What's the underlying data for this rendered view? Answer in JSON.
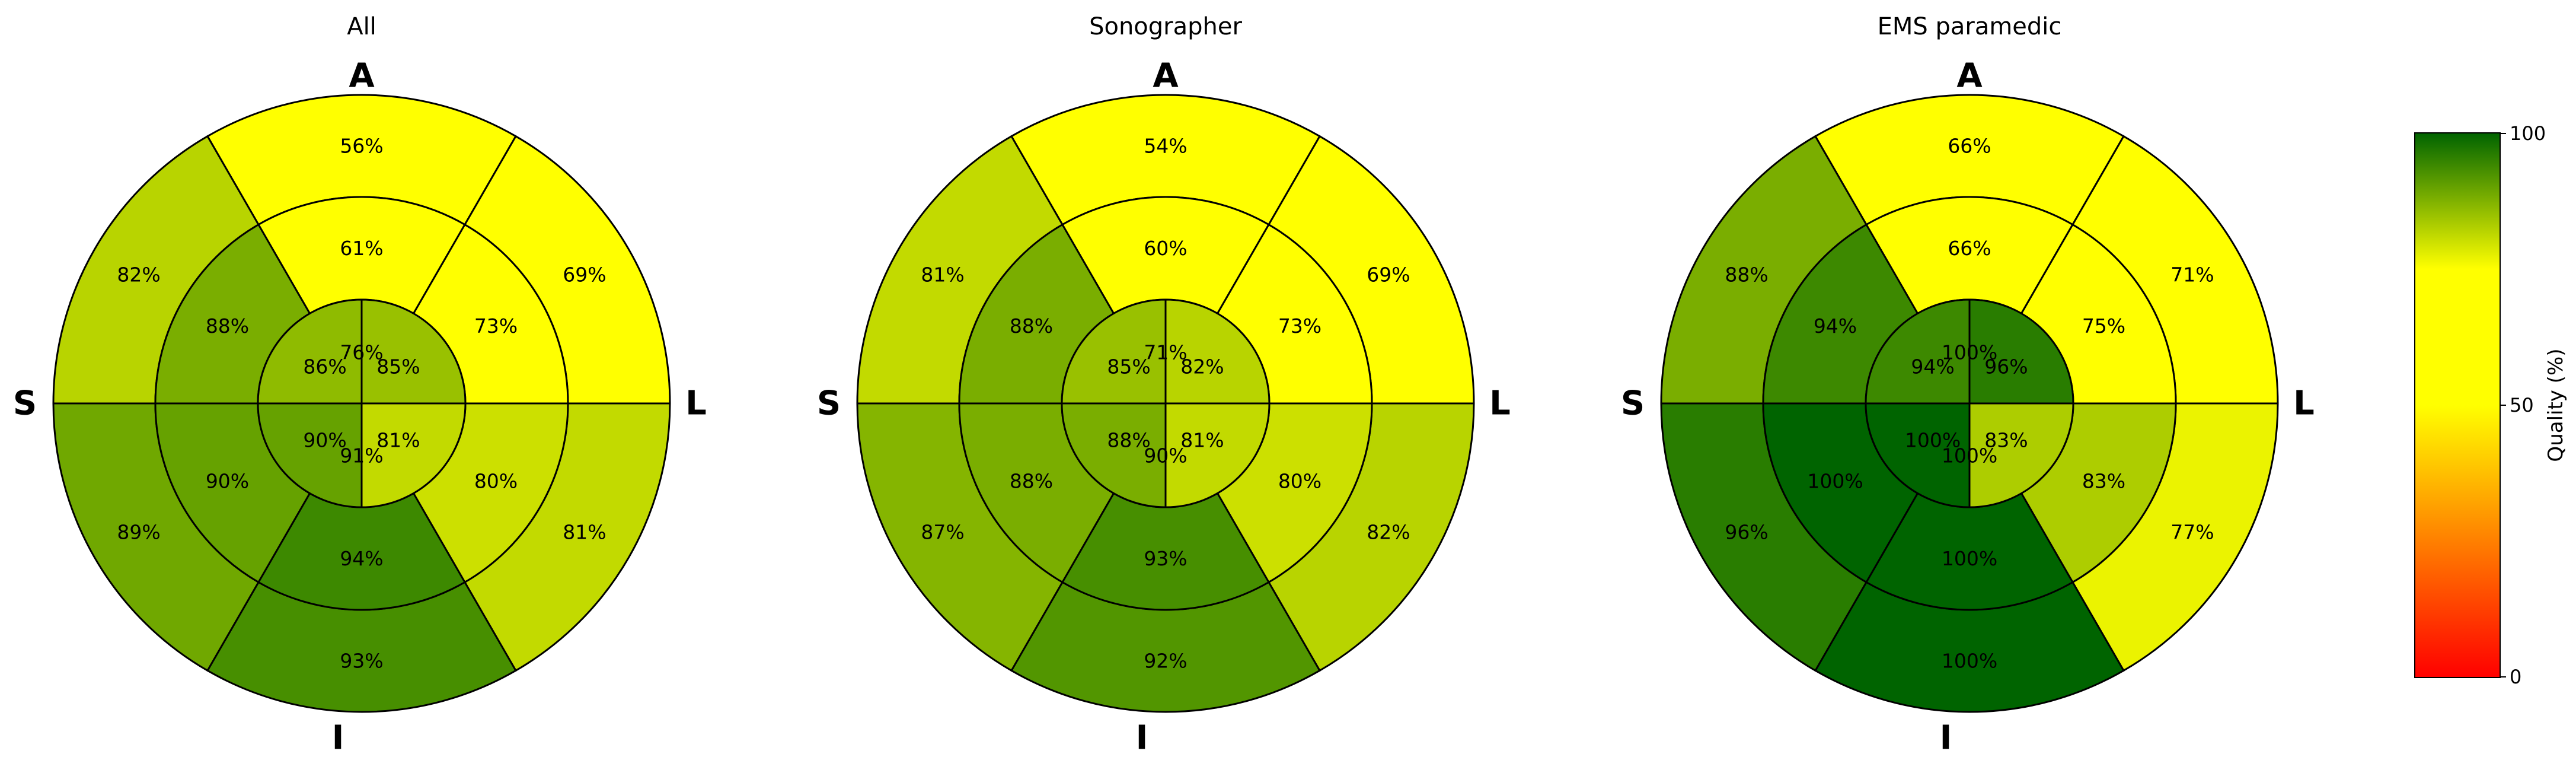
{
  "chart_data": {
    "type": "bullseye",
    "orientation_labels": {
      "top": "A",
      "right": "L",
      "bottom": "I",
      "left": "S"
    },
    "segment_order": "each ring clockwise starting from the top (A) sector; outer and middle rings have 6 sectors of 60°, inner ring has 4 quadrants",
    "colorbar": {
      "label": "Quality (%)",
      "range": [
        0,
        100
      ],
      "ticks": [
        "0",
        "50",
        "100"
      ],
      "colormap_stops": [
        {
          "value": 0,
          "color": "#ff0000"
        },
        {
          "value": 50,
          "color": "#ffff00"
        },
        {
          "value": 75,
          "color": "#ffff00"
        },
        {
          "value": 100,
          "color": "#006400"
        }
      ]
    },
    "panels": [
      {
        "title": "All",
        "outer": [
          56,
          69,
          81,
          93,
          89,
          82
        ],
        "middle": [
          61,
          73,
          80,
          94,
          90,
          88
        ],
        "inner": [
          85,
          81,
          90,
          86
        ],
        "center": [
          76,
          91
        ]
      },
      {
        "title": "Sonographer",
        "outer": [
          54,
          69,
          82,
          92,
          87,
          81
        ],
        "middle": [
          60,
          73,
          80,
          93,
          88,
          88
        ],
        "inner": [
          82,
          81,
          88,
          85
        ],
        "center": [
          71,
          90
        ]
      },
      {
        "title": "EMS paramedic",
        "outer": [
          66,
          71,
          77,
          100,
          96,
          88
        ],
        "middle": [
          66,
          75,
          83,
          100,
          100,
          94
        ],
        "inner": [
          96,
          83,
          100,
          94
        ],
        "center": [
          100,
          100
        ]
      }
    ]
  }
}
